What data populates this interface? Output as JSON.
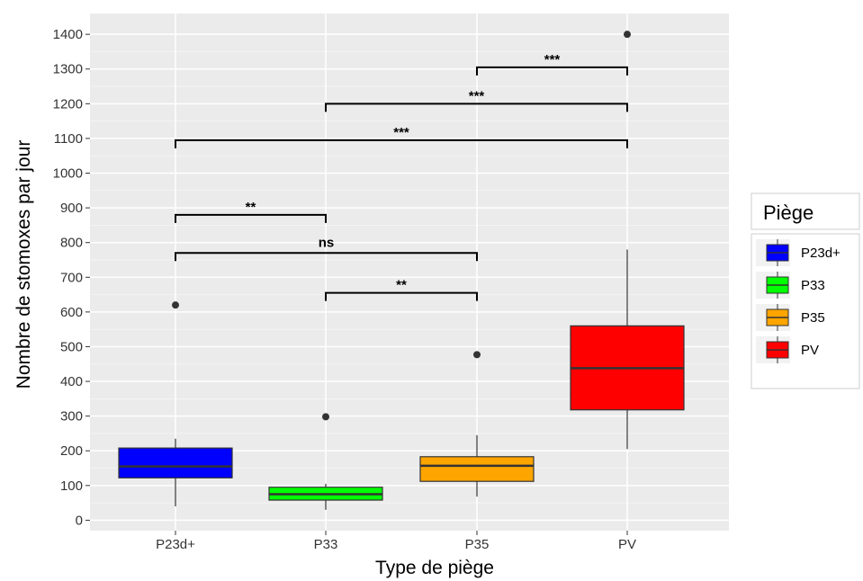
{
  "chart_data": {
    "type": "boxplot",
    "xlabel": "Type de piège",
    "ylabel": "Nombre de stomoxes par jour",
    "ylim": [
      -30,
      1460
    ],
    "yticks": [
      0,
      100,
      200,
      300,
      400,
      500,
      600,
      700,
      800,
      900,
      1000,
      1100,
      1200,
      1300,
      1400
    ],
    "grid": true,
    "legend": {
      "title": "Piège",
      "position": "right"
    },
    "categories": [
      "P23d+",
      "P33",
      "P35",
      "PV"
    ],
    "boxes": [
      {
        "name": "P23d+",
        "color": "#0000FF",
        "min": 40,
        "q1": 122,
        "median": 155,
        "q3": 208,
        "max": 235,
        "outliers": [
          620
        ]
      },
      {
        "name": "P33",
        "color": "#00FF00",
        "min": 30,
        "q1": 58,
        "median": 75,
        "q3": 95,
        "max": 105,
        "outliers": [
          298
        ]
      },
      {
        "name": "P35",
        "color": "#FFA500",
        "min": 68,
        "q1": 112,
        "median": 157,
        "q3": 183,
        "max": 245,
        "outliers": [
          477
        ]
      },
      {
        "name": "PV",
        "color": "#FF0000",
        "min": 205,
        "q1": 318,
        "median": 438,
        "q3": 560,
        "max": 780,
        "outliers": [
          1400
        ]
      }
    ],
    "comparisons": [
      {
        "from": "P35",
        "to": "PV",
        "y": 1305,
        "label": "***"
      },
      {
        "from": "P33",
        "to": "PV",
        "y": 1200,
        "label": "***"
      },
      {
        "from": "P23d+",
        "to": "PV",
        "y": 1095,
        "label": "***"
      },
      {
        "from": "P23d+",
        "to": "P33",
        "y": 880,
        "label": "**"
      },
      {
        "from": "P23d+",
        "to": "P35",
        "y": 770,
        "label": "ns"
      },
      {
        "from": "P33",
        "to": "P35",
        "y": 655,
        "label": "**"
      }
    ]
  }
}
